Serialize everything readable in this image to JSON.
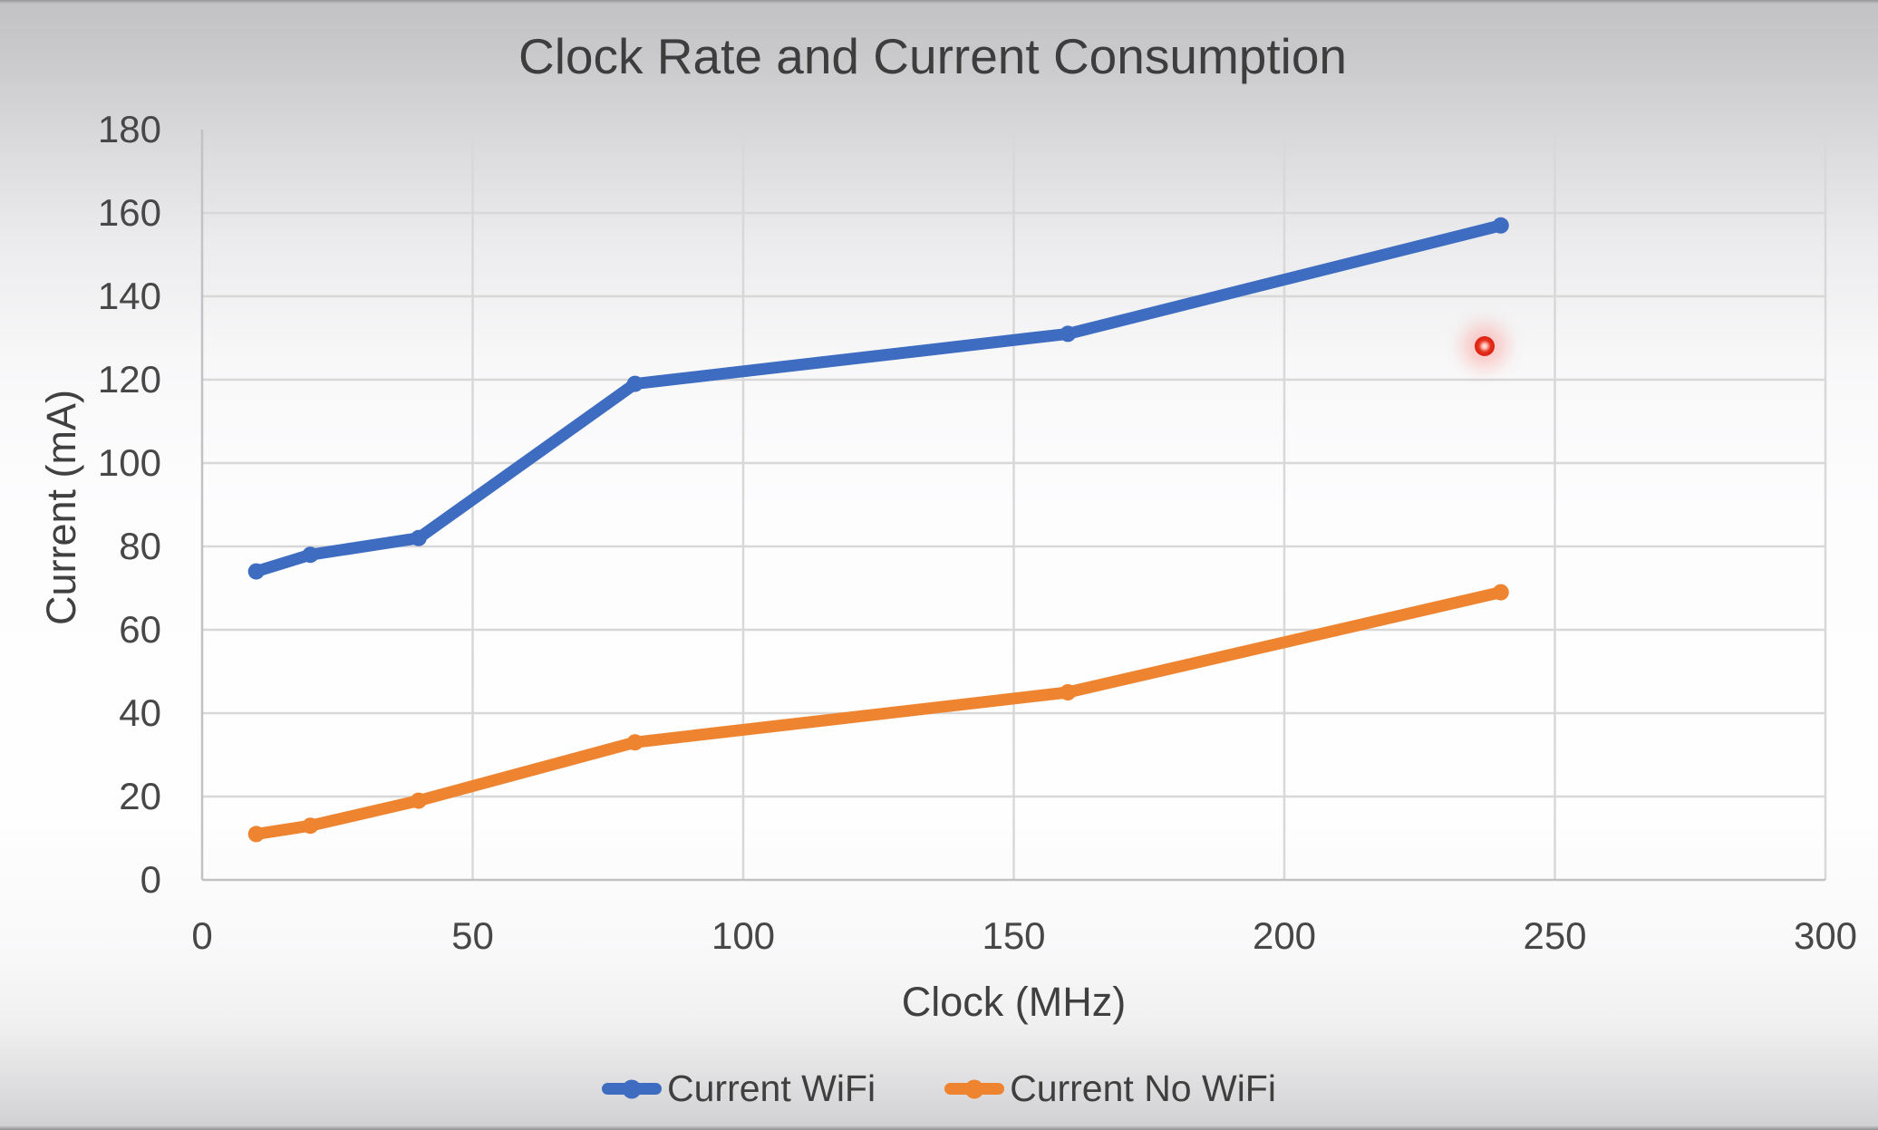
{
  "chart_data": {
    "type": "line",
    "title": "Clock Rate and Current Consumption",
    "xlabel": "Clock (MHz)",
    "ylabel": "Current (mA)",
    "xlim": [
      0,
      300
    ],
    "ylim": [
      0,
      180
    ],
    "x_ticks": [
      0,
      50,
      100,
      150,
      200,
      250,
      300
    ],
    "y_ticks": [
      0,
      20,
      40,
      60,
      80,
      100,
      120,
      140,
      160,
      180
    ],
    "grid": true,
    "legend_position": "bottom-center",
    "x": [
      10,
      20,
      40,
      80,
      160,
      240
    ],
    "series": [
      {
        "name": "Current WiFi",
        "color": "#3d6cc0",
        "values": [
          74,
          78,
          82,
          119,
          131,
          157
        ]
      },
      {
        "name": "Current No WiFi",
        "color": "#ee8430",
        "values": [
          11,
          13,
          19,
          33,
          45,
          69
        ]
      }
    ],
    "annotations": [
      {
        "type": "laser-pointer-dot",
        "x": 237,
        "y": 128,
        "color": "#e6321f"
      }
    ],
    "style": {
      "gridline_color": "#d8d8d8",
      "axis_line_color": "#c2c2c4",
      "line_width": 13,
      "marker_radius": 9,
      "title_color": "#3d3d3d",
      "tick_color": "#474747"
    }
  }
}
